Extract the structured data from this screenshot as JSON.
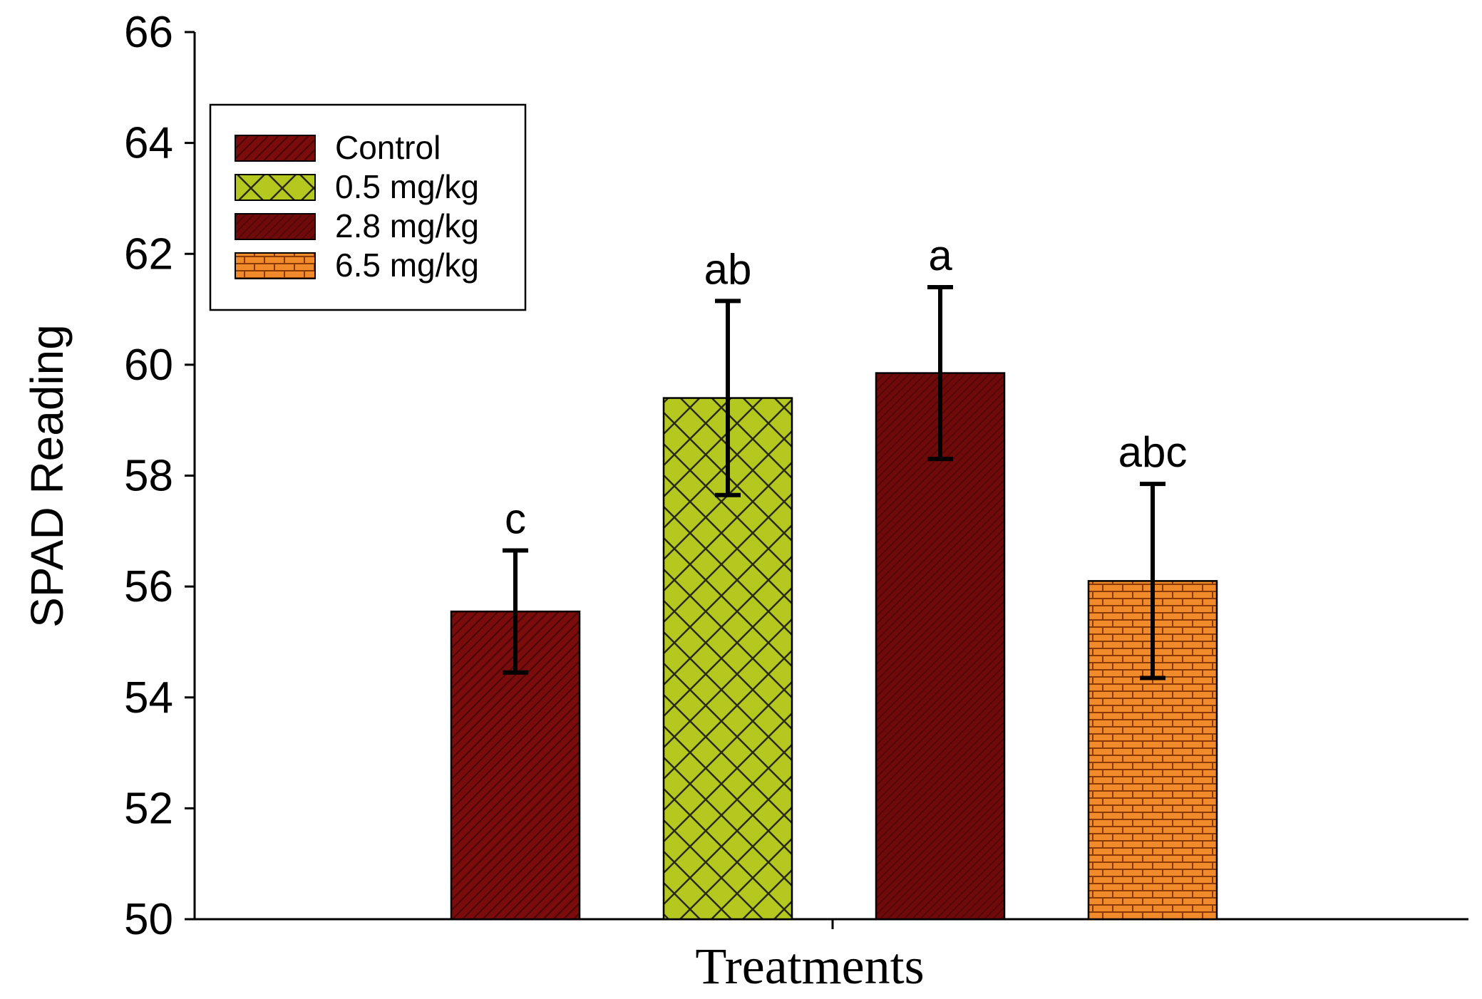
{
  "chart_data": {
    "type": "bar",
    "xlabel": "Treatments",
    "ylabel": "SPAD Reading",
    "ylim": [
      50,
      66
    ],
    "yticks": [
      50,
      52,
      54,
      56,
      58,
      60,
      62,
      64,
      66
    ],
    "legend_position": "top-left",
    "series": [
      {
        "name": "Control",
        "value": 55.55,
        "error": 1.1,
        "sig": "c",
        "color": "#7a0c0c",
        "pattern": "diagonal-stripes"
      },
      {
        "name": "0.5 mg/kg",
        "value": 59.4,
        "error": 1.75,
        "sig": "ab",
        "color": "#b5c81f",
        "pattern": "crosshatch"
      },
      {
        "name": "2.8 mg/kg",
        "value": 59.85,
        "error": 1.55,
        "sig": "a",
        "color": "#6e0a0a",
        "pattern": "fine-stripes"
      },
      {
        "name": "6.5 mg/kg",
        "value": 56.1,
        "error": 1.75,
        "sig": "abc",
        "color": "#f08a2a",
        "pattern": "bricks"
      }
    ]
  }
}
